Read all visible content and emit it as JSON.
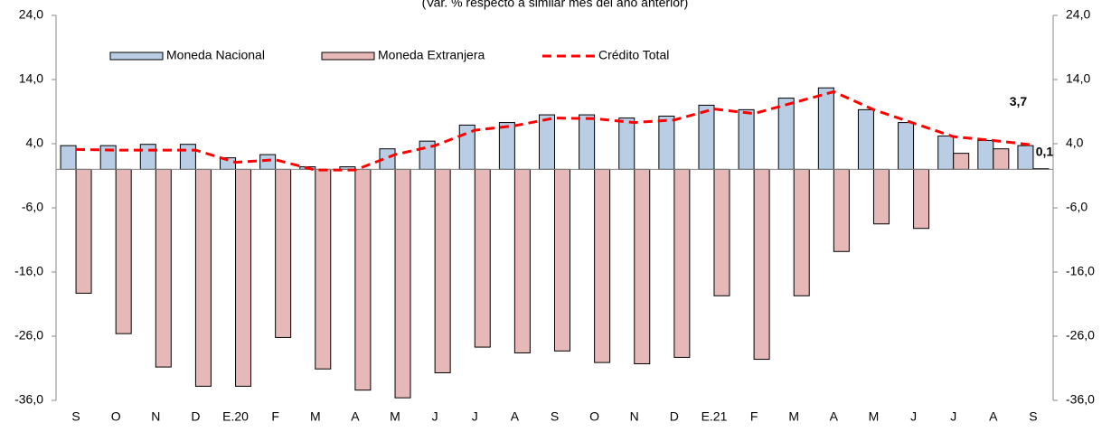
{
  "chart_data": {
    "type": "bar",
    "subtitle": "(Var. % respecto a similar mes del año anterior)",
    "categories": [
      "S",
      "O",
      "N",
      "D",
      "E.20",
      "F",
      "M",
      "A",
      "M",
      "J",
      "J",
      "A",
      "S",
      "O",
      "N",
      "D",
      "E.21",
      "F",
      "M",
      "A",
      "M",
      "J",
      "J",
      "A",
      "S"
    ],
    "series": [
      {
        "name": "Moneda Nacional",
        "type": "bar",
        "color": "#b9cde5",
        "values": [
          3.7,
          3.7,
          3.9,
          3.9,
          1.8,
          2.3,
          0.4,
          0.4,
          3.2,
          4.4,
          6.9,
          7.3,
          8.5,
          8.5,
          8.0,
          8.3,
          10.0,
          9.3,
          11.1,
          12.7,
          9.3,
          7.3,
          5.2,
          4.5,
          3.7
        ],
        "value_labels": [
          null,
          null,
          null,
          null,
          null,
          null,
          null,
          null,
          null,
          null,
          null,
          null,
          null,
          null,
          null,
          null,
          null,
          null,
          null,
          null,
          null,
          null,
          null,
          null,
          "3,7"
        ]
      },
      {
        "name": "Moneda Extranjera",
        "type": "bar",
        "color": "#e6b9b8",
        "values": [
          -19.3,
          -25.6,
          -30.8,
          -33.8,
          -33.8,
          -26.2,
          -31.1,
          -34.4,
          -35.6,
          -31.7,
          -27.7,
          -28.6,
          -28.3,
          -30.1,
          -30.3,
          -29.3,
          -19.7,
          -29.6,
          -19.7,
          -12.8,
          -8.5,
          -9.2,
          2.5,
          3.2,
          0.1
        ],
        "value_labels": [
          null,
          null,
          null,
          null,
          null,
          null,
          null,
          null,
          null,
          null,
          null,
          null,
          null,
          null,
          null,
          null,
          null,
          null,
          null,
          null,
          null,
          null,
          null,
          null,
          "0,1"
        ]
      },
      {
        "name": "Crédito Total",
        "type": "line",
        "color": "#ff0000",
        "values": [
          3.1,
          3.0,
          3.0,
          3.0,
          1.1,
          1.5,
          -0.1,
          -0.1,
          2.3,
          3.7,
          6.1,
          6.8,
          8.0,
          7.9,
          7.3,
          7.7,
          9.4,
          8.7,
          10.4,
          12.1,
          9.3,
          7.2,
          5.1,
          4.5,
          3.8
        ]
      }
    ],
    "ylim": [
      -36,
      24
    ],
    "yticks": [
      {
        "value": -36,
        "label": "-36,0"
      },
      {
        "value": -26,
        "label": "-26,0"
      },
      {
        "value": -16,
        "label": "-16,0"
      },
      {
        "value": -6,
        "label": "-6,0"
      },
      {
        "value": 4,
        "label": "4,0"
      },
      {
        "value": 14,
        "label": "14,0"
      },
      {
        "value": 24,
        "label": "24,0"
      }
    ],
    "y2lim": [
      -36,
      24
    ],
    "y2ticks": [
      {
        "value": -36,
        "label": "-36,0"
      },
      {
        "value": -26,
        "label": "-26,0"
      },
      {
        "value": -16,
        "label": "-16,0"
      },
      {
        "value": -6,
        "label": "-6,0"
      },
      {
        "value": 4,
        "label": "4,0"
      },
      {
        "value": 14,
        "label": "14,0"
      },
      {
        "value": 24,
        "label": "24,0"
      }
    ],
    "legend": "top",
    "grid": false
  }
}
